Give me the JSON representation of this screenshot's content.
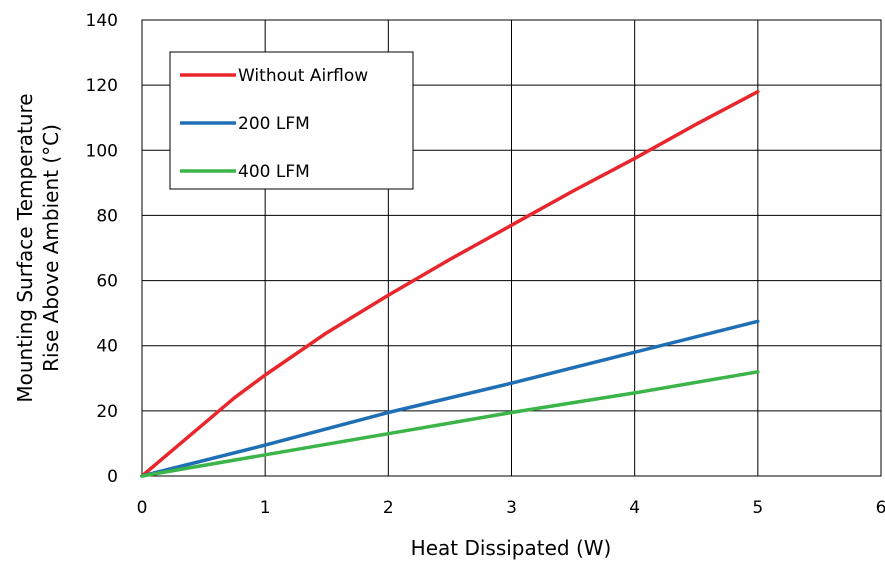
{
  "chart_data": {
    "type": "line",
    "xlabel": "Heat Dissipated (W)",
    "ylabel": [
      "Mounting Surface Temperature",
      "Rise Above  Ambient (°C)"
    ],
    "xlim": [
      0,
      6
    ],
    "ylim": [
      0,
      140
    ],
    "xticks": [
      "0",
      "1",
      "2",
      "3",
      "4",
      "5",
      "6"
    ],
    "yticks": [
      "0",
      "20",
      "40",
      "60",
      "80",
      "100",
      "120",
      "140"
    ],
    "grid": true,
    "legend_position": "top-left",
    "series": [
      {
        "name": "Without Airflow",
        "color": "#e8262c",
        "x": [
          0,
          0.25,
          0.5,
          0.75,
          1,
          1.5,
          2,
          2.5,
          3,
          3.5,
          4,
          4.5,
          5
        ],
        "y": [
          0,
          8,
          16,
          24,
          31,
          44,
          55.5,
          66.5,
          77,
          87.5,
          97.5,
          108,
          118
        ]
      },
      {
        "name": "200 LFM",
        "color": "#1f6fb4",
        "x": [
          0,
          1,
          2,
          3,
          4,
          5
        ],
        "y": [
          0,
          9.5,
          19.5,
          28.5,
          38,
          47.5
        ]
      },
      {
        "name": "400 LFM",
        "color": "#3bb54a",
        "x": [
          0,
          1,
          2,
          3,
          4,
          5
        ],
        "y": [
          0,
          6.5,
          13,
          19.5,
          25.5,
          32
        ]
      }
    ]
  }
}
